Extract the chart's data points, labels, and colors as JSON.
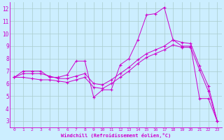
{
  "xlabel": "Windchill (Refroidissement éolien,°C)",
  "bg_color": "#cceeff",
  "line_color": "#cc00cc",
  "grid_color": "#aacccc",
  "xlim": [
    -0.5,
    23.5
  ],
  "ylim": [
    2.5,
    12.5
  ],
  "yticks": [
    3,
    4,
    5,
    6,
    7,
    8,
    9,
    10,
    11,
    12
  ],
  "xticks": [
    0,
    1,
    2,
    3,
    4,
    5,
    6,
    7,
    8,
    9,
    10,
    11,
    12,
    13,
    14,
    15,
    16,
    17,
    18,
    19,
    20,
    21,
    22,
    23
  ],
  "series1_x": [
    0,
    1,
    2,
    3,
    4,
    5,
    6,
    7,
    8,
    9,
    10,
    11,
    12,
    13,
    14,
    15,
    16,
    17,
    18,
    19,
    20,
    21,
    22,
    23
  ],
  "series1_y": [
    6.5,
    7.0,
    7.0,
    7.0,
    6.5,
    6.5,
    6.7,
    7.8,
    7.8,
    4.9,
    5.5,
    5.5,
    7.5,
    8.0,
    9.5,
    11.5,
    11.6,
    12.1,
    9.5,
    9.0,
    9.0,
    4.8,
    4.8,
    3.0
  ],
  "series2_x": [
    0,
    1,
    2,
    3,
    4,
    5,
    6,
    7,
    8,
    9,
    10,
    11,
    12,
    13,
    14,
    15,
    16,
    17,
    18,
    19,
    20,
    21,
    22,
    23
  ],
  "series2_y": [
    6.5,
    6.8,
    6.8,
    6.8,
    6.6,
    6.4,
    6.4,
    6.6,
    6.8,
    6.0,
    5.9,
    6.3,
    6.8,
    7.3,
    7.9,
    8.4,
    8.7,
    9.0,
    9.5,
    9.3,
    9.2,
    7.4,
    5.8,
    3.0
  ],
  "series3_x": [
    0,
    1,
    2,
    3,
    4,
    5,
    6,
    7,
    8,
    9,
    10,
    11,
    12,
    13,
    14,
    15,
    16,
    17,
    18,
    19,
    20,
    21,
    22,
    23
  ],
  "series3_y": [
    6.5,
    6.5,
    6.4,
    6.3,
    6.3,
    6.2,
    6.1,
    6.3,
    6.5,
    5.7,
    5.6,
    6.0,
    6.5,
    7.0,
    7.6,
    8.1,
    8.4,
    8.7,
    9.1,
    8.9,
    8.9,
    7.1,
    5.4,
    3.0
  ]
}
